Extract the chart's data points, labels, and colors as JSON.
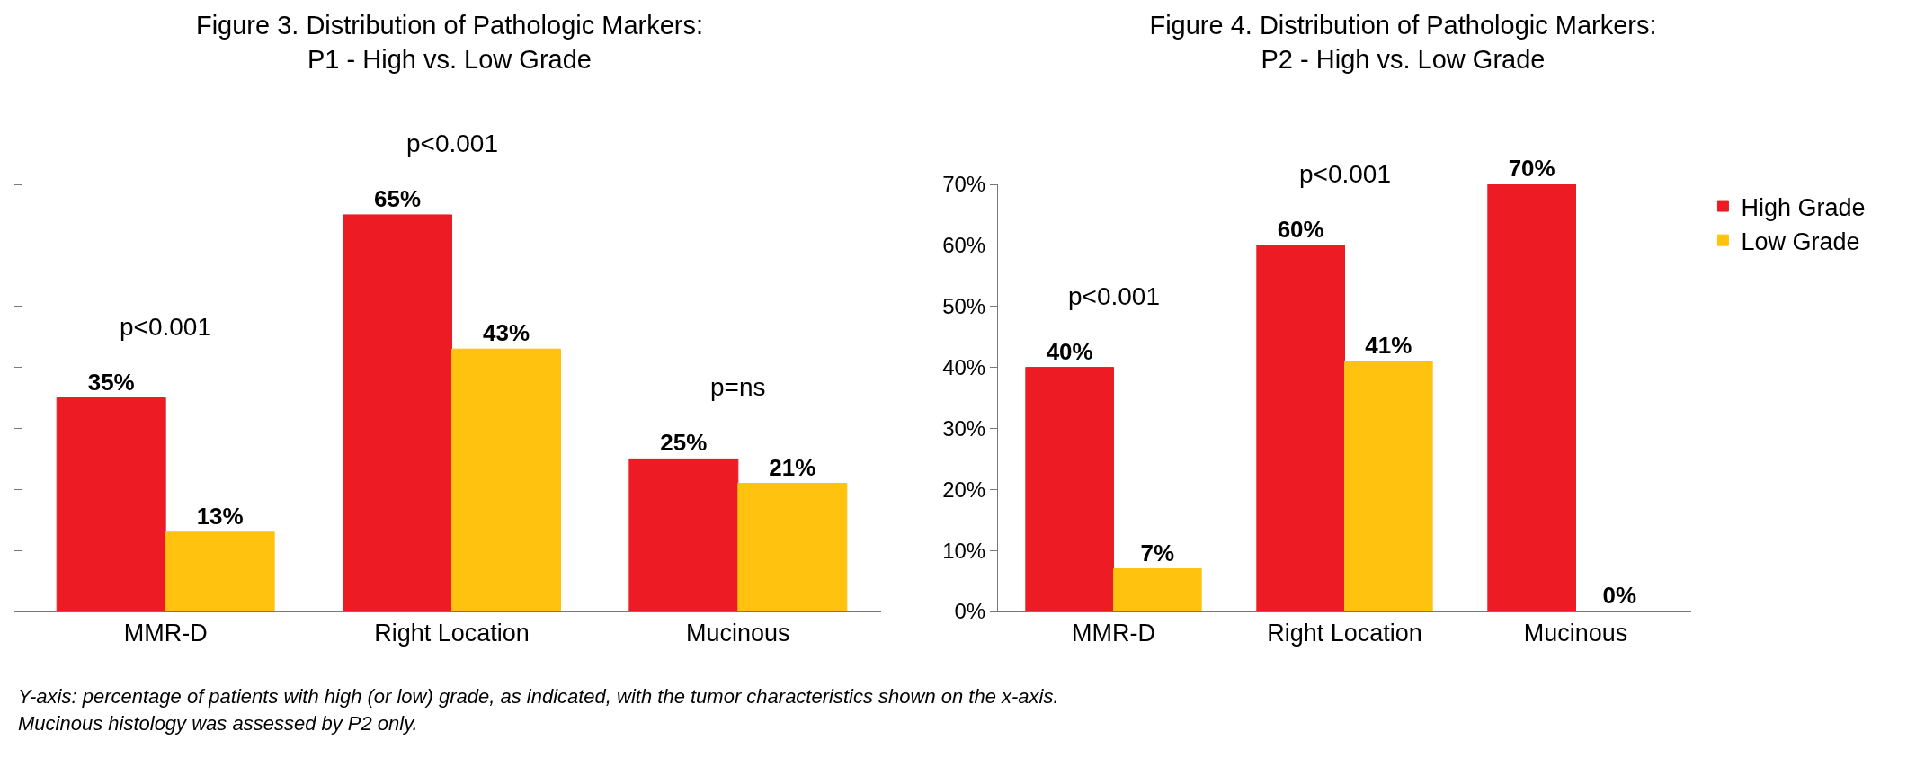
{
  "chart_data": [
    {
      "type": "bar",
      "title": "Figure 3. Distribution of Pathologic Markers:\nP1 - High vs. Low Grade",
      "categories": [
        "MMR-D",
        "Right Location",
        "Mucinous"
      ],
      "series": [
        {
          "color": "#ed1c24",
          "values": [
            35,
            65,
            25
          ],
          "value_labels": [
            "35%",
            "65%",
            "25%"
          ]
        },
        {
          "color": "#ffc20e",
          "values": [
            13,
            43,
            21
          ],
          "value_labels": [
            "13%",
            "43%",
            "21%"
          ]
        }
      ],
      "ylim": [
        0,
        70
      ],
      "yticks": [
        0,
        10,
        20,
        30,
        40,
        50,
        60,
        70
      ],
      "tick_labels": "x",
      "grid": false,
      "legend": false,
      "annotations": [
        {
          "text": "p<0.001",
          "x": "MMR-D",
          "y": 35
        },
        {
          "text": "p<0.001",
          "x": "Right Location",
          "y": 65
        },
        {
          "text": "p=ns",
          "x": "Mucinous",
          "y": 25
        },
        "Y-axis: percentage of patients with high (or low) grade, as indicated, with the tumor characteristics shown on the x-axis.",
        "Mucinous histology was assessed by P2 only."
      ]
    },
    {
      "type": "bar",
      "title": "Figure 4. Distribution of Pathologic Markers:\nP2 - High vs. Low Grade",
      "categories": [
        "MMR-D",
        "Right Location",
        "Mucinous"
      ],
      "series": [
        {
          "name": "High Grade",
          "color": "#ed1c24",
          "values": [
            40,
            60,
            70
          ],
          "value_labels": [
            "40%",
            "60%",
            "70%"
          ]
        },
        {
          "name": "Low Grade",
          "color": "#ffc20e",
          "values": [
            7,
            41,
            0
          ],
          "value_labels": [
            "7%",
            "41%",
            "0%"
          ]
        }
      ],
      "ylim": [
        0,
        70
      ],
      "yticks": [
        {
          "value": 0,
          "label": "0%"
        },
        {
          "value": 10,
          "label": "10%"
        },
        {
          "value": 20,
          "label": "20%"
        },
        {
          "value": 30,
          "label": "30%"
        },
        {
          "value": 40,
          "label": "40%"
        },
        {
          "value": 50,
          "label": "50%"
        },
        {
          "value": 60,
          "label": "60%"
        },
        {
          "value": 70,
          "label": "70%"
        }
      ],
      "grid": false,
      "legend": "top right",
      "annotations": [
        {
          "text": "p<0.001",
          "x": "MMR-D",
          "y": 40
        },
        {
          "text": "p<0.001",
          "x": "Right Location",
          "y": 60
        }
      ]
    }
  ]
}
